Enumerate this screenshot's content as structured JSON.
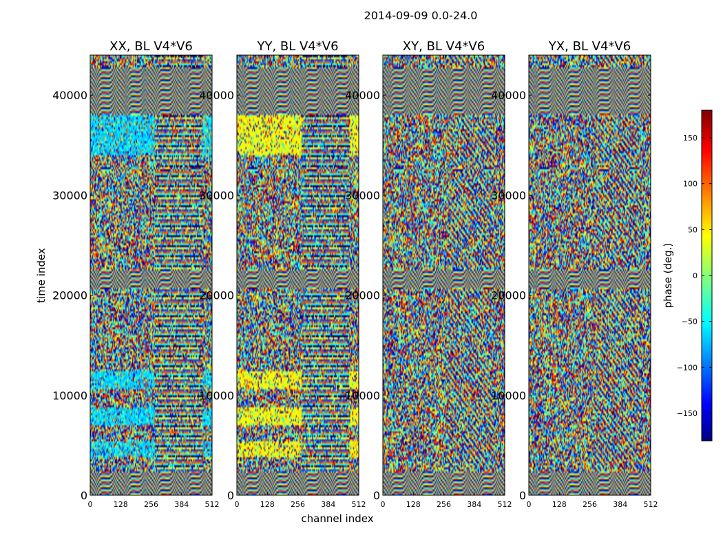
{
  "chart_data": {
    "type": "heatmap",
    "title": "2014-09-09 0.0-24.0",
    "xlabel": "channel index",
    "ylabel": "time index",
    "xlim": [
      0,
      512
    ],
    "ylim": [
      0,
      44000
    ],
    "xticks": [
      0,
      128,
      256,
      384,
      512
    ],
    "yticks": [
      0,
      10000,
      20000,
      30000,
      40000
    ],
    "panels": [
      {
        "title": "XX, BL V4*V6"
      },
      {
        "title": "YY, BL V4*V6"
      },
      {
        "title": "XY, BL V4*V6"
      },
      {
        "title": "YX, BL V4*V6"
      }
    ],
    "colorbar": {
      "label": "phase (deg.)",
      "range": [
        -180,
        180
      ],
      "ticks": [
        -150,
        -100,
        -50,
        0,
        50,
        100,
        150
      ],
      "colormap": "jet",
      "colors": [
        "#000080",
        "#0000ff",
        "#00ffff",
        "#ffff00",
        "#ff0000",
        "#800000"
      ]
    },
    "value_quantity": "phase (deg.)"
  }
}
